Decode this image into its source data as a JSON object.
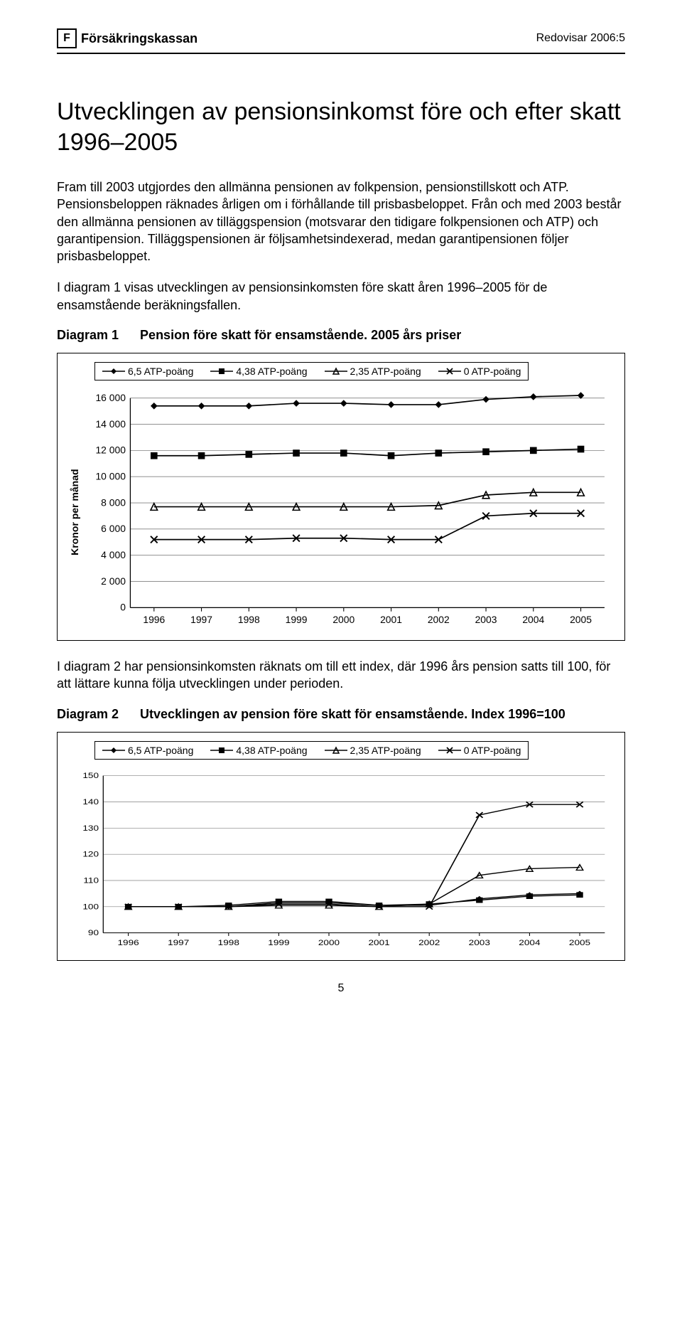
{
  "header": {
    "logo_letter": "F",
    "logo_text": "Försäkringskassan",
    "right_text": "Redovisar 2006:5"
  },
  "title": "Utvecklingen av pensionsinkomst före och efter skatt 1996–2005",
  "para1": "Fram till 2003 utgjordes den allmänna pensionen av folkpension, pensionstillskott och ATP. Pensionsbeloppen räknades årligen om i förhållande till prisbasbeloppet. Från och med 2003 består den allmänna pensionen av tilläggspension (motsvarar den tidigare folkpensionen och ATP) och garantipension. Tilläggspensionen är följsamhetsindexerad, medan garantipensionen följer prisbasbeloppet.",
  "para2": "I diagram 1 visas utvecklingen av pensionsinkomsten före skatt åren 1996–2005 för de ensamstående beräkningsfallen.",
  "diagram1_num": "Diagram 1",
  "diagram1_title": "Pension före skatt för ensamstående. 2005 års priser",
  "para3": "I diagram 2 har pensionsinkomsten räknats om till ett index, där 1996 års pension satts till 100, för att lättare kunna följa utvecklingen under perioden.",
  "diagram2_num": "Diagram 2",
  "diagram2_title": "Utvecklingen av pension före skatt för ensamstående. Index 1996=100",
  "page_number": "5",
  "chart1": {
    "type": "line",
    "y_label": "Kronor per månad",
    "legend": [
      "6,5 ATP-poäng",
      "4,38 ATP-poäng",
      "2,35 ATP-poäng",
      "0 ATP-poäng"
    ],
    "markers": [
      "diamond",
      "square",
      "triangle",
      "x"
    ],
    "x_categories": [
      "1996",
      "1997",
      "1998",
      "1999",
      "2000",
      "2001",
      "2002",
      "2003",
      "2004",
      "2005"
    ],
    "y_ticks": [
      0,
      2000,
      4000,
      6000,
      8000,
      10000,
      12000,
      14000,
      16000
    ],
    "y_tick_labels": [
      "0",
      "2 000",
      "4 000",
      "6 000",
      "8 000",
      "10 000",
      "12 000",
      "14 000",
      "16 000"
    ],
    "ylim": [
      0,
      16000
    ],
    "series": [
      [
        15400,
        15400,
        15400,
        15600,
        15600,
        15500,
        15500,
        15900,
        16100,
        16200
      ],
      [
        11600,
        11600,
        11700,
        11800,
        11800,
        11600,
        11800,
        11900,
        12000,
        12100
      ],
      [
        7700,
        7700,
        7700,
        7700,
        7700,
        7700,
        7800,
        8600,
        8800,
        8800
      ],
      [
        5200,
        5200,
        5200,
        5300,
        5300,
        5200,
        5200,
        7000,
        7200,
        7200
      ]
    ],
    "line_color": "#000000",
    "grid_color": "#808080",
    "background": "#ffffff",
    "tick_font_size": 13
  },
  "chart2": {
    "type": "line",
    "legend": [
      "6,5 ATP-poäng",
      "4,38 ATP-poäng",
      "2,35 ATP-poäng",
      "0 ATP-poäng"
    ],
    "markers": [
      "diamond",
      "square",
      "triangle",
      "x"
    ],
    "x_categories": [
      "1996",
      "1997",
      "1998",
      "1999",
      "2000",
      "2001",
      "2002",
      "2003",
      "2004",
      "2005"
    ],
    "y_ticks": [
      90,
      100,
      110,
      120,
      130,
      140,
      150
    ],
    "y_tick_labels": [
      "90",
      "100",
      "110",
      "120",
      "130",
      "140",
      "150"
    ],
    "ylim": [
      90,
      150
    ],
    "series": [
      [
        100,
        100,
        100,
        101.5,
        101.5,
        100.5,
        100.5,
        103,
        104.5,
        105
      ],
      [
        100,
        100,
        100.5,
        102,
        102,
        100.5,
        101,
        102.5,
        104,
        104.5
      ],
      [
        100,
        100,
        100,
        100.5,
        100.5,
        100,
        101,
        112,
        114.5,
        115
      ],
      [
        100,
        100,
        100,
        101,
        101,
        100,
        100,
        135,
        139,
        139
      ]
    ],
    "line_color": "#000000",
    "grid_color": "#808080",
    "background": "#ffffff",
    "tick_font_size": 13
  }
}
